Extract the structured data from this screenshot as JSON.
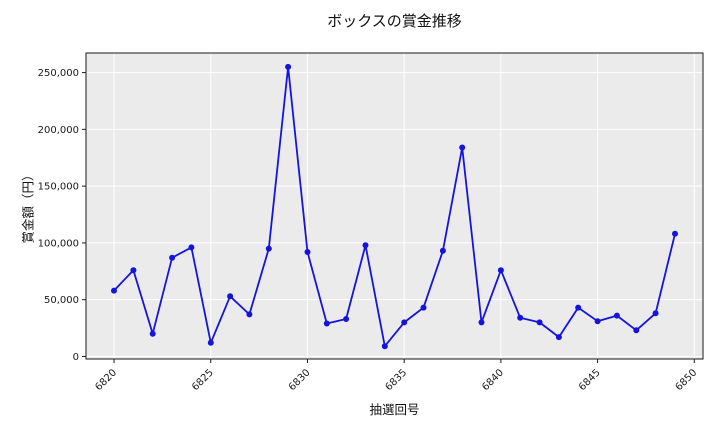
{
  "chart_data": {
    "type": "line",
    "title": "ボックスの賞金推移",
    "xlabel": "抽選回号",
    "ylabel": "賞金額（円）",
    "series_name": "ボックス",
    "x": [
      6820,
      6821,
      6822,
      6823,
      6824,
      6825,
      6826,
      6827,
      6828,
      6829,
      6830,
      6831,
      6832,
      6833,
      6834,
      6835,
      6836,
      6837,
      6838,
      6839,
      6840,
      6841,
      6842,
      6843,
      6844,
      6845,
      6846,
      6847,
      6848,
      6849
    ],
    "values": [
      58000,
      76000,
      20000,
      87000,
      96000,
      12000,
      53000,
      37000,
      95000,
      255000,
      92000,
      29000,
      33000,
      98000,
      9000,
      30000,
      43000,
      93000,
      184000,
      30000,
      76000,
      34000,
      30000,
      17000,
      43000,
      31000,
      36000,
      23000,
      38000,
      108000
    ],
    "xticks": [
      6820,
      6825,
      6830,
      6835,
      6840,
      6845,
      6850
    ],
    "yticks": [
      0,
      50000,
      100000,
      150000,
      200000,
      250000
    ],
    "ytick_labels": [
      "0",
      "50,000",
      "100,000",
      "150,000",
      "200,000",
      "250,000"
    ],
    "xlim": [
      6818.55,
      6850.45
    ],
    "ylim": [
      -2250,
      267250
    ],
    "grid": true,
    "legend": "none",
    "marker": "circle",
    "colors": {
      "line": "#1414dc",
      "marker": "#1414dc",
      "plot_bg": "#ebebeb",
      "grid": "#ffffff",
      "frame": "#1a1a1a",
      "text": "#111111",
      "fig_bg": "#ffffff"
    }
  }
}
